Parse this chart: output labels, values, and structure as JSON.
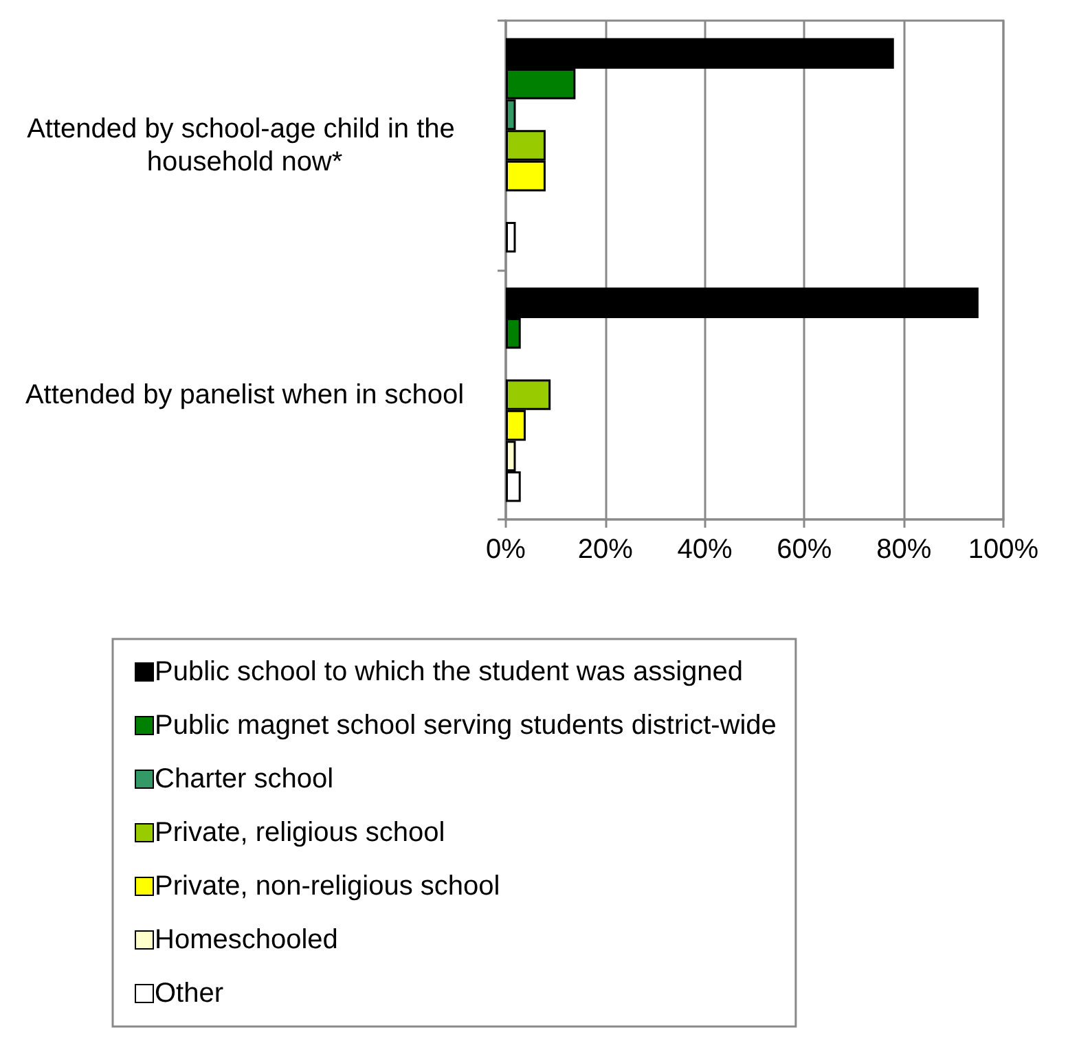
{
  "chart_data": {
    "type": "bar",
    "orientation": "horizontal",
    "categories": [
      "Attended by school-age child in the household now*",
      "Attended by panelist when in school"
    ],
    "series": [
      {
        "name": "Public school to which the student was assigned",
        "color": "#000000",
        "values": [
          78,
          95
        ]
      },
      {
        "name": "Public magnet school serving students district-wide",
        "color": "#008000",
        "values": [
          14,
          3
        ]
      },
      {
        "name": "Charter school",
        "color": "#339966",
        "values": [
          2,
          null
        ]
      },
      {
        "name": "Private, religious school",
        "color": "#99cc00",
        "values": [
          8,
          9
        ]
      },
      {
        "name": "Private, non-religious school",
        "color": "#ffff00",
        "values": [
          8,
          4
        ]
      },
      {
        "name": "Homeschooled",
        "color": "#ffffcc",
        "values": [
          null,
          2
        ]
      },
      {
        "name": "Other",
        "color": "#ffffff",
        "values": [
          2,
          3
        ]
      }
    ],
    "xlim": [
      0,
      100
    ],
    "xticks": [
      {
        "value": 0,
        "label": "0%"
      },
      {
        "value": 20,
        "label": "20%"
      },
      {
        "value": 40,
        "label": "40%"
      },
      {
        "value": 60,
        "label": "60%"
      },
      {
        "value": 80,
        "label": "80%"
      },
      {
        "value": 100,
        "label": "100%"
      }
    ],
    "grid": "x",
    "legend": "bottom"
  }
}
